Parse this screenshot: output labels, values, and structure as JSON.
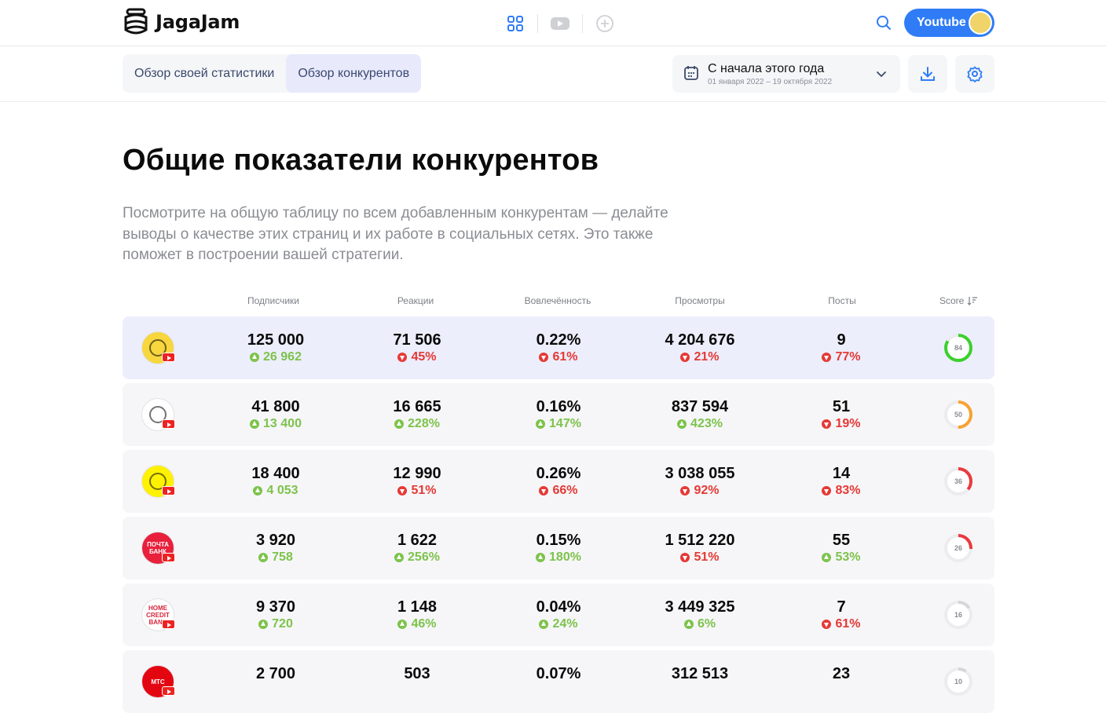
{
  "app": {
    "name": "JagaJam"
  },
  "header": {
    "network_label": "Youtube"
  },
  "tabs": [
    {
      "label": "Обзор своей статистики",
      "active": false
    },
    {
      "label": "Обзор конкурентов",
      "active": true
    }
  ],
  "date_range": {
    "label": "С начала этого года",
    "range": "01 января 2022 – 19 октября 2022"
  },
  "page": {
    "title": "Общие показатели конкурентов",
    "description": "Посмотрите на общую таблицу по всем добавленным конкурентам — делайте выводы о качестве этих страниц и их работе в социальных сетях. Это также поможет в построении вашей стратегии."
  },
  "table": {
    "columns": [
      "Подписчики",
      "Реакции",
      "Вовлечённость",
      "Просмотры",
      "Посты"
    ],
    "score_label": "Score",
    "rows": [
      {
        "logo": "tinkoff-logo",
        "logo_color": "#f7d63e",
        "highlight": true,
        "cells": [
          {
            "value": "125 000",
            "delta": "26 962",
            "dir": "up"
          },
          {
            "value": "71 506",
            "delta": "45%",
            "dir": "down"
          },
          {
            "value": "0.22%",
            "delta": "61%",
            "dir": "down"
          },
          {
            "value": "4 204 676",
            "delta": "21%",
            "dir": "down"
          },
          {
            "value": "9",
            "delta": "77%",
            "dir": "down"
          }
        ],
        "score": 84,
        "score_color": "#3ad02b"
      },
      {
        "logo": "central-bank-logo",
        "logo_color": "#ffffff",
        "highlight": false,
        "cells": [
          {
            "value": "41 800",
            "delta": "13 400",
            "dir": "up"
          },
          {
            "value": "16 665",
            "delta": "228%",
            "dir": "up"
          },
          {
            "value": "0.16%",
            "delta": "147%",
            "dir": "up"
          },
          {
            "value": "837 594",
            "delta": "423%",
            "dir": "up"
          },
          {
            "value": "51",
            "delta": "19%",
            "dir": "down"
          }
        ],
        "score": 50,
        "score_color": "#f7a233"
      },
      {
        "logo": "raiffeisen-logo",
        "logo_color": "#fff200",
        "highlight": false,
        "cells": [
          {
            "value": "18 400",
            "delta": "4 053",
            "dir": "up"
          },
          {
            "value": "12 990",
            "delta": "51%",
            "dir": "down"
          },
          {
            "value": "0.26%",
            "delta": "66%",
            "dir": "down"
          },
          {
            "value": "3 038 055",
            "delta": "92%",
            "dir": "down"
          },
          {
            "value": "14",
            "delta": "83%",
            "dir": "down"
          }
        ],
        "score": 36,
        "score_color": "#ea3a3d"
      },
      {
        "logo": "pochta-bank-logo",
        "logo_color": "#e8203b",
        "logo_text": "ПОЧТА БАНК",
        "highlight": false,
        "cells": [
          {
            "value": "3 920",
            "delta": "758",
            "dir": "up"
          },
          {
            "value": "1 622",
            "delta": "256%",
            "dir": "up"
          },
          {
            "value": "0.15%",
            "delta": "180%",
            "dir": "up"
          },
          {
            "value": "1 512 220",
            "delta": "51%",
            "dir": "down"
          },
          {
            "value": "55",
            "delta": "53%",
            "dir": "up"
          }
        ],
        "score": 26,
        "score_color": "#ea3a3d"
      },
      {
        "logo": "home-credit-logo",
        "logo_color": "#ffffff",
        "logo_text": "HOME CREDIT BANK",
        "highlight": false,
        "cells": [
          {
            "value": "9 370",
            "delta": "720",
            "dir": "up"
          },
          {
            "value": "1 148",
            "delta": "46%",
            "dir": "up"
          },
          {
            "value": "0.04%",
            "delta": "24%",
            "dir": "up"
          },
          {
            "value": "3 449 325",
            "delta": "6%",
            "dir": "up"
          },
          {
            "value": "7",
            "delta": "61%",
            "dir": "down"
          }
        ],
        "score": 16,
        "score_color": "#d5d6d9"
      },
      {
        "logo": "mts-bank-logo",
        "logo_color": "#e30611",
        "logo_text": "МТС",
        "highlight": false,
        "cells": [
          {
            "value": "2 700",
            "delta": "",
            "dir": "up"
          },
          {
            "value": "503",
            "delta": "",
            "dir": "up"
          },
          {
            "value": "0.07%",
            "delta": "",
            "dir": "down"
          },
          {
            "value": "312 513",
            "delta": "",
            "dir": "down"
          },
          {
            "value": "23",
            "delta": "",
            "dir": "down"
          }
        ],
        "score": 10,
        "score_color": "#d5d6d9"
      }
    ]
  }
}
